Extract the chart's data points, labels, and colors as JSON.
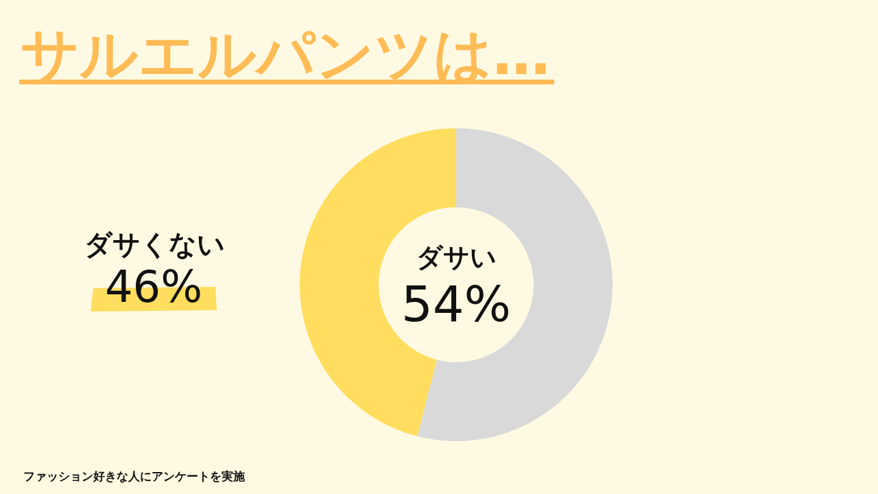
{
  "chart_data": {
    "type": "donut",
    "title": "サルエルパンツは…",
    "categories": [
      "ダサい",
      "ダサくない"
    ],
    "values": [
      54,
      46
    ],
    "colors": [
      "#d9d9d9",
      "#ffdd5e"
    ],
    "value_labels": [
      "54%",
      "46%"
    ],
    "annotations": [
      "ファッション好きな人にアンケートを実施"
    ]
  }
}
